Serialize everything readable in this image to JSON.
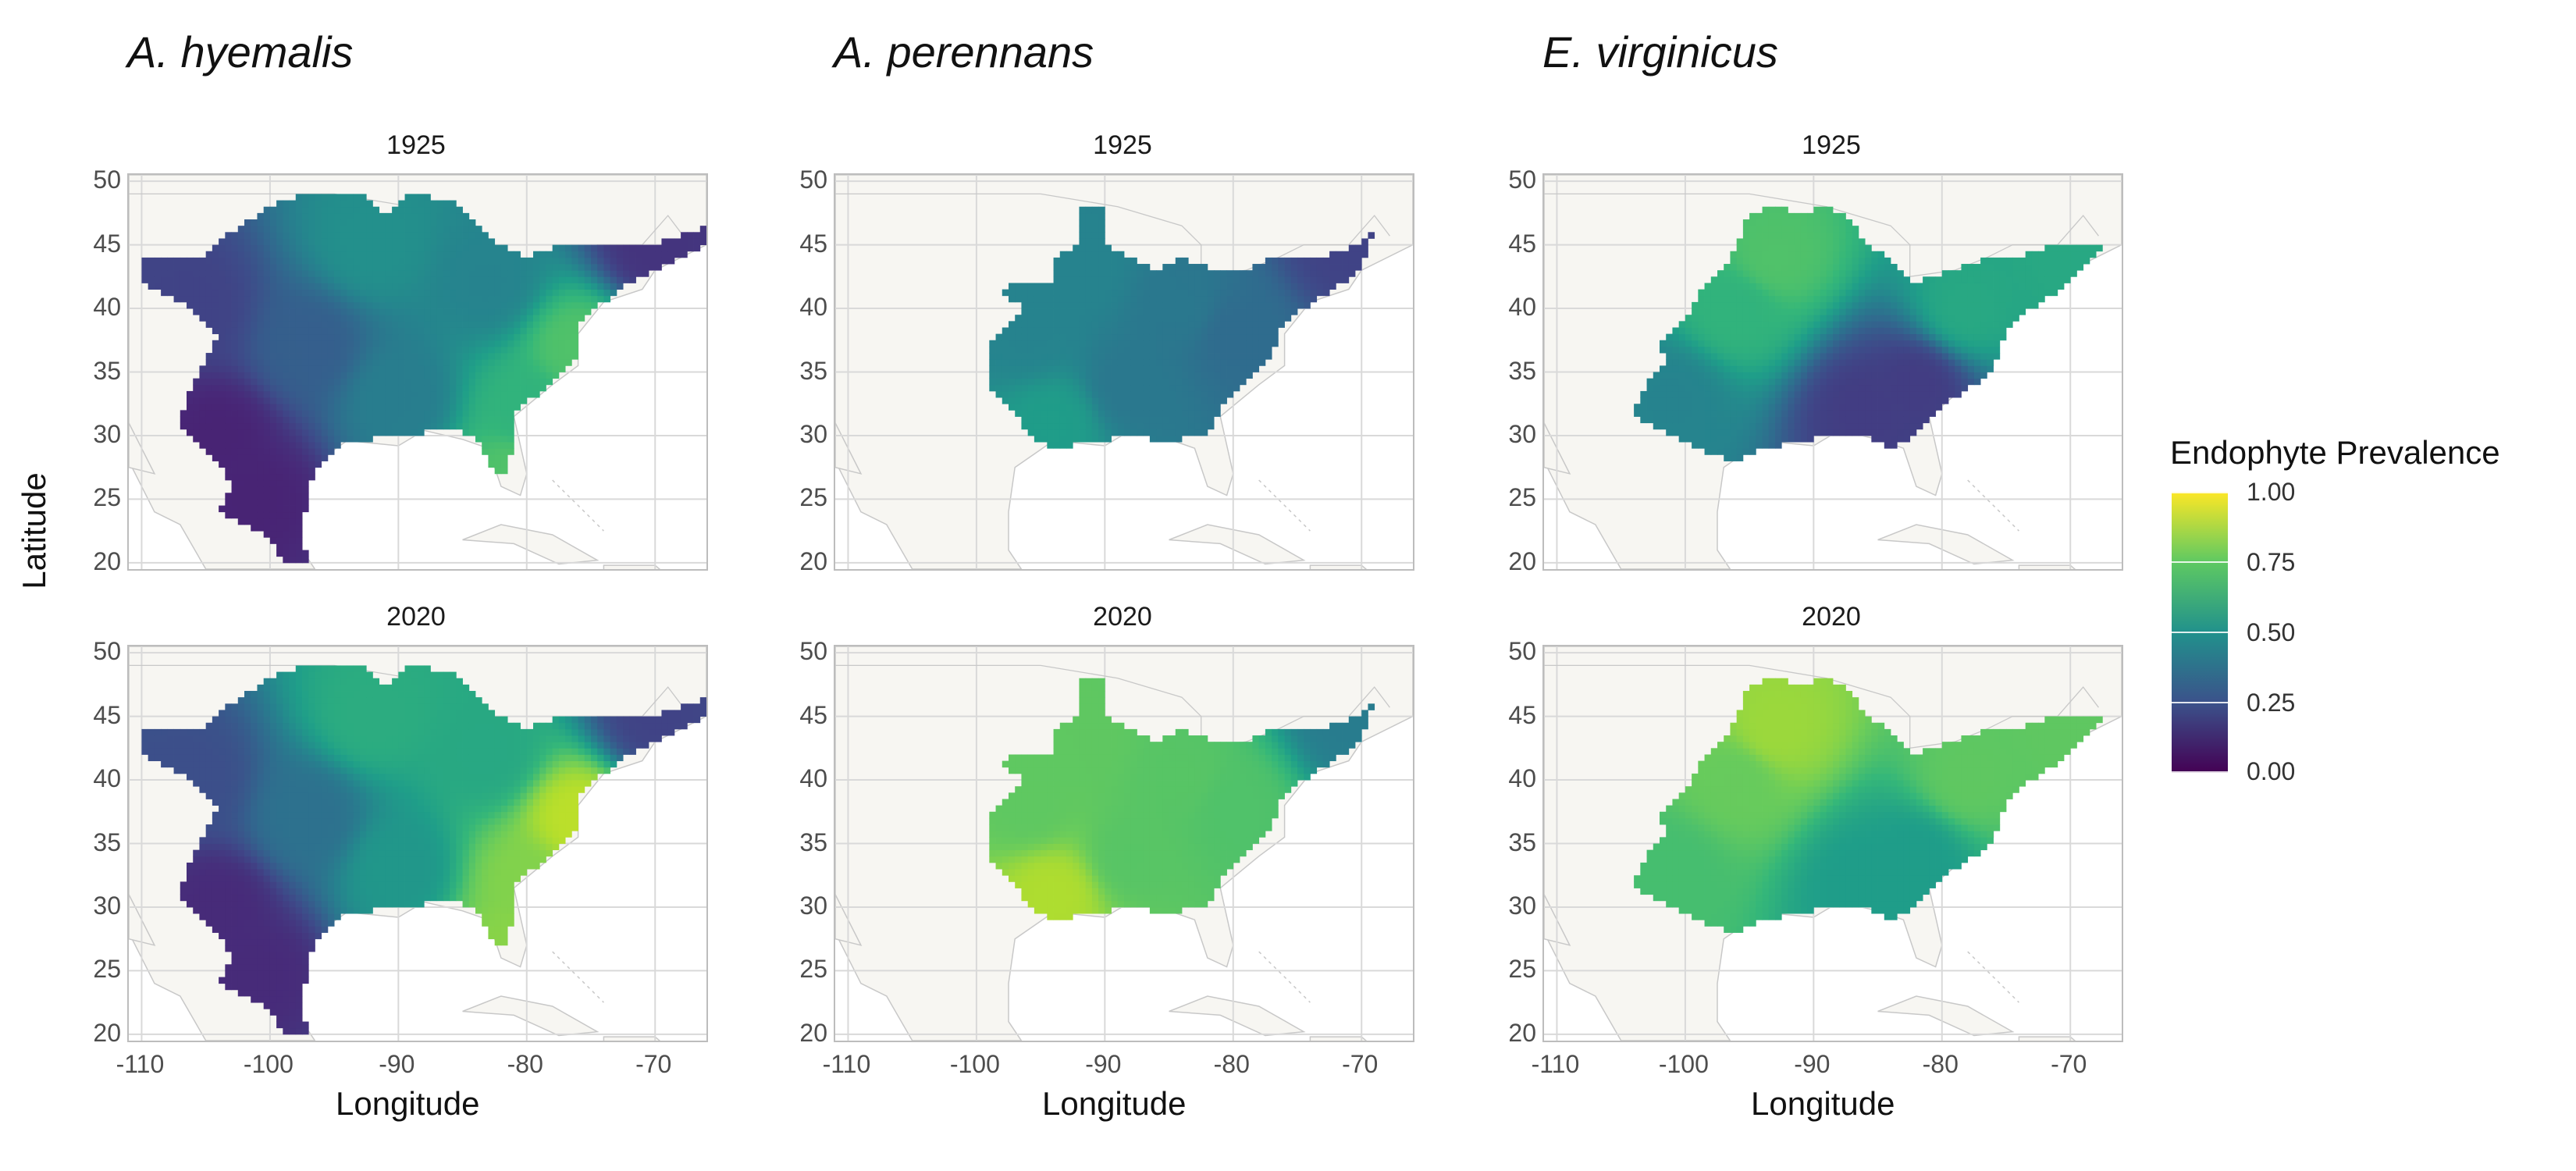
{
  "species": [
    "A. hyemalis",
    "A. perennans",
    "E. virginicus"
  ],
  "years": [
    "1925",
    "2020"
  ],
  "axes": {
    "xlabel": "Longitude",
    "ylabel": "Latitude",
    "xticks": [
      "-110",
      "-100",
      "-90",
      "-80",
      "-70"
    ],
    "yticks": [
      "50",
      "45",
      "40",
      "35",
      "30",
      "25",
      "20"
    ],
    "xlim": [
      -111,
      -66
    ],
    "ylim": [
      19.5,
      50.5
    ]
  },
  "legend": {
    "title": "Endophyte Prevalence",
    "labels": [
      "1.00",
      "0.75",
      "0.50",
      "0.25",
      "0.00"
    ],
    "colormap": "viridis",
    "range": [
      0,
      1
    ]
  },
  "colors": {
    "land": "#f7f6f2",
    "coast": "#c8c8c8",
    "grid": "#d9d9d9"
  },
  "chart_data": {
    "type": "heatmap",
    "value_name": "Endophyte Prevalence",
    "panels": [
      {
        "species": "A. hyemalis",
        "year": "1925",
        "prevalence": {
          "range_center_lon_lat": [
            -92,
            38
          ],
          "north_central": 0.5,
          "west_southwest": 0.1,
          "mid_atlantic_coast": 0.72,
          "florida": 0.72,
          "new_england": 0.15,
          "great_lakes_east": 0.45
        }
      },
      {
        "species": "A. hyemalis",
        "year": "2020",
        "prevalence": {
          "range_center_lon_lat": [
            -92,
            38
          ],
          "north_central": 0.62,
          "west_southwest": 0.12,
          "mid_atlantic_coast": 0.9,
          "florida": 0.82,
          "new_england": 0.2,
          "great_lakes_east": 0.6
        }
      },
      {
        "species": "A. perennans",
        "year": "1925",
        "prevalence": {
          "range_center_lon_lat": [
            -87,
            37
          ],
          "west": 0.45,
          "south_gulf": 0.55,
          "east": 0.35,
          "new_england": 0.2
        }
      },
      {
        "species": "A. perennans",
        "year": "2020",
        "prevalence": {
          "range_center_lon_lat": [
            -87,
            37
          ],
          "west": 0.75,
          "south_gulf": 0.88,
          "east": 0.72,
          "new_england": 0.42
        }
      },
      {
        "species": "E. virginicus",
        "year": "1925",
        "prevalence": {
          "range_center_lon_lat": [
            -88,
            37
          ],
          "north": 0.72,
          "south_central": 0.18,
          "east": 0.6,
          "new_england": 0.6
        }
      },
      {
        "species": "E. virginicus",
        "year": "2020",
        "prevalence": {
          "range_center_lon_lat": [
            -88,
            37
          ],
          "north": 0.85,
          "south_central": 0.55,
          "east": 0.75,
          "new_england": 0.75
        }
      }
    ]
  }
}
